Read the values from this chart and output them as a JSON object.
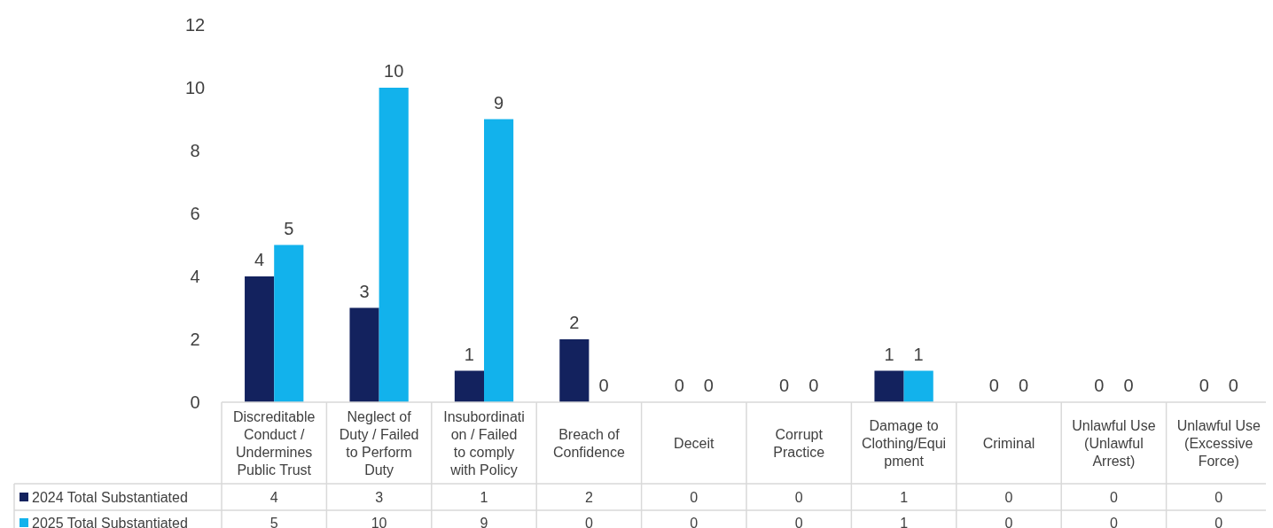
{
  "chart_data": {
    "type": "bar",
    "categories": [
      "Discreditable Conduct / Undermines Public Trust",
      "Neglect of Duty / Failed to Perform Duty",
      "Insubordination / Failed to comply with Policy",
      "Breach of Confidence",
      "Deceit",
      "Corrupt Practice",
      "Damage to Clothing/Equipment",
      "Criminal",
      "Unlawful Use (Unlawful Arrest)",
      "Unlawful Use (Excessive Force)"
    ],
    "series": [
      {
        "name": "2024 Total Substantiated",
        "color": "#13225e",
        "values": [
          4,
          3,
          1,
          2,
          0,
          0,
          1,
          0,
          0,
          0
        ],
        "value_labels": [
          "4",
          "3",
          "1",
          "2",
          "0",
          "0",
          "1",
          "0",
          "0",
          "0"
        ]
      },
      {
        "name": "2025 Total Substantiated",
        "color": "#12b2ec",
        "values": [
          5,
          10,
          9,
          0,
          0,
          0,
          1,
          0,
          0,
          0
        ],
        "value_labels": [
          "5",
          "10",
          "9",
          "0",
          "0",
          "0",
          "1",
          "0",
          "0",
          "0"
        ]
      }
    ],
    "ylim": [
      0,
      12
    ],
    "yticks": [
      0,
      2,
      4,
      6,
      8,
      10,
      12
    ],
    "data_labels": true,
    "legend": "bottom",
    "grid": false
  }
}
